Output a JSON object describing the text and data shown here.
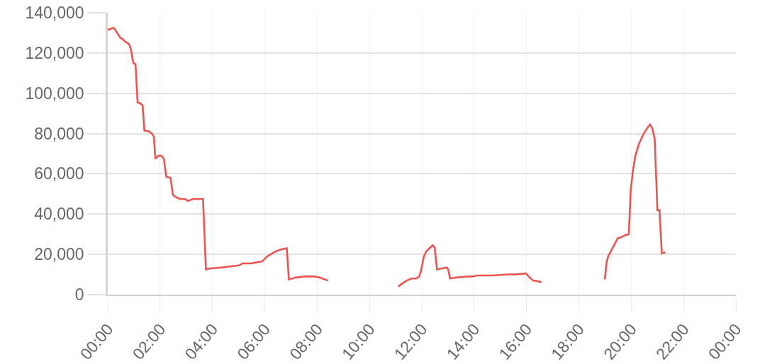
{
  "chart_data": {
    "type": "line",
    "color": "#ef5350",
    "line_style": "solid",
    "grid": true,
    "x": [
      0,
      0.23,
      0.36,
      0.48,
      0.56,
      0.68,
      0.81,
      0.88,
      0.98,
      1.06,
      1.14,
      1.24,
      1.33,
      1.4,
      1.58,
      1.69,
      1.76,
      1.82,
      1.94,
      2.05,
      2.14,
      2.24,
      2.4,
      2.49,
      2.59,
      2.76,
      2.94,
      3.07,
      3.16,
      3.25,
      3.64,
      3.75,
      3.93,
      4.39,
      4.66,
      5.02,
      5.15,
      5.47,
      5.9,
      6.01,
      6.15,
      6.42,
      6.65,
      6.84,
      6.92,
      7.19,
      7.55,
      7.87,
      8.09,
      8.41,
      9.7,
      11.1,
      11.25,
      11.43,
      11.61,
      11.79,
      11.9,
      11.97,
      12.08,
      12.17,
      12.33,
      12.41,
      12.49,
      12.58,
      12.78,
      12.95,
      13.01,
      13.08,
      13.32,
      13.77,
      13.95,
      14.09,
      14.18,
      14.68,
      15.31,
      15.58,
      15.98,
      16.12,
      16.25,
      16.48,
      16.57,
      17.8,
      18.99,
      19.06,
      19.12,
      19.26,
      19.4,
      19.49,
      19.62,
      19.76,
      19.91,
      19.98,
      20.07,
      20.16,
      20.3,
      20.48,
      20.63,
      20.72,
      20.81,
      20.9,
      21.0,
      21.08,
      21.17,
      21.3
    ],
    "values": [
      131500,
      132500,
      130000,
      127500,
      127000,
      125500,
      124500,
      122000,
      115000,
      114500,
      95500,
      95000,
      94000,
      81500,
      81000,
      80000,
      78500,
      67500,
      69000,
      69000,
      67500,
      58500,
      58000,
      49500,
      48500,
      47500,
      47500,
      46500,
      47000,
      47500,
      47500,
      12500,
      13000,
      13500,
      14000,
      14500,
      15500,
      15500,
      16500,
      18000,
      19500,
      21500,
      22500,
      23000,
      7500,
      8500,
      9000,
      9000,
      8500,
      7000,
      null,
      4000,
      5500,
      7000,
      8000,
      8000,
      9000,
      12000,
      19000,
      21500,
      23500,
      24500,
      23500,
      12500,
      13000,
      13500,
      12500,
      8000,
      8500,
      9000,
      9000,
      9500,
      9500,
      9500,
      10000,
      10000,
      10500,
      8500,
      7000,
      6500,
      6000,
      null,
      7500,
      16000,
      19000,
      22500,
      26000,
      28000,
      28500,
      29500,
      30000,
      51500,
      62000,
      69000,
      75000,
      80000,
      83000,
      84500,
      82500,
      77000,
      42000,
      42000,
      20500,
      21000
    ],
    "xlim": [
      0,
      24
    ],
    "xticks": [
      {
        "value": 0,
        "label": "00:00"
      },
      {
        "value": 2,
        "label": "02:00"
      },
      {
        "value": 4,
        "label": "04:00"
      },
      {
        "value": 6,
        "label": "06:00"
      },
      {
        "value": 8,
        "label": "08:00"
      },
      {
        "value": 10,
        "label": "10:00"
      },
      {
        "value": 12,
        "label": "12:00"
      },
      {
        "value": 14,
        "label": "14:00"
      },
      {
        "value": 16,
        "label": "16:00"
      },
      {
        "value": 18,
        "label": "18:00"
      },
      {
        "value": 20,
        "label": "20:00"
      },
      {
        "value": 22,
        "label": "22:00"
      },
      {
        "value": 24,
        "label": "00:00"
      }
    ],
    "ylim": [
      0,
      140000
    ],
    "yticks": [
      {
        "value": 0,
        "label": "0"
      },
      {
        "value": 20000,
        "label": "20,000"
      },
      {
        "value": 40000,
        "label": "40,000"
      },
      {
        "value": 60000,
        "label": "60,000"
      },
      {
        "value": 80000,
        "label": "80,000"
      },
      {
        "value": 100000,
        "label": "100,000"
      },
      {
        "value": 120000,
        "label": "120,000"
      },
      {
        "value": 140000,
        "label": "140,000"
      }
    ]
  }
}
